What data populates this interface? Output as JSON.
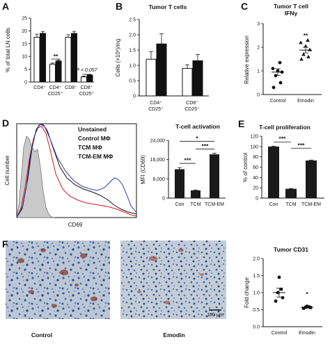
{
  "panels": {
    "A": {
      "label": "A"
    },
    "B": {
      "label": "B"
    },
    "C": {
      "label": "C"
    },
    "D": {
      "label": "D"
    },
    "E": {
      "label": "E"
    },
    "F": {
      "label": "F"
    }
  },
  "chart_data": [
    {
      "id": "A",
      "type": "bar",
      "ylabel": "% of total LN cells",
      "ylim": [
        0,
        25
      ],
      "yticks": [
        0,
        5,
        10,
        15,
        20,
        25
      ],
      "categories": [
        "CD4⁺",
        "CD4⁺ CD25⁺",
        "CD8⁺",
        "CD8⁺ CD25⁺"
      ],
      "cat_lines": [
        [
          "CD4⁺"
        ],
        [
          "CD4⁺",
          "CD25⁺"
        ],
        [
          "CD8⁺"
        ],
        [
          "CD8⁺",
          "CD25⁺"
        ]
      ],
      "series": [
        {
          "values": [
            17.5,
            7.0,
            17.5,
            2.0
          ],
          "errors": [
            1.2,
            0.4,
            1.0,
            0.3
          ],
          "color": "#ffffff"
        },
        {
          "values": [
            19.0,
            8.2,
            19.0,
            2.7
          ],
          "errors": [
            0.7,
            0.4,
            0.8,
            0.2
          ],
          "color": "#111111"
        }
      ],
      "annotations": [
        {
          "text": "**",
          "group": 1
        },
        {
          "text": "P = 0.057",
          "group": 3
        }
      ]
    },
    {
      "id": "B",
      "type": "bar",
      "title": "Tumor T cells",
      "ylabel": "Cells (×10³)/mg",
      "ylim": [
        0,
        2.5
      ],
      "yticks": [
        0,
        0.5,
        1.0,
        1.5,
        2.0,
        2.5
      ],
      "categories": [
        "CD4⁺ CD25⁺",
        "CD8⁺ CD25⁺"
      ],
      "cat_lines": [
        [
          "CD4⁺",
          "CD25⁺"
        ],
        [
          "CD8⁺",
          "CD25⁺"
        ]
      ],
      "series": [
        {
          "values": [
            1.2,
            0.9
          ],
          "errors": [
            0.25,
            0.12
          ],
          "color": "#ffffff"
        },
        {
          "values": [
            1.7,
            1.15
          ],
          "errors": [
            0.33,
            0.2
          ],
          "color": "#111111"
        }
      ]
    },
    {
      "id": "C",
      "type": "scatter",
      "title": [
        "Tumor T cell",
        "IFNγ"
      ],
      "ylabel": "Relative expression",
      "ylim": [
        0,
        3
      ],
      "yticks": [
        0,
        1,
        2,
        3
      ],
      "categories": [
        "Control",
        "Emodin"
      ],
      "groups": [
        {
          "name": "Control",
          "values": [
            0.3,
            0.5,
            0.8,
            0.95,
            1.0,
            1.1,
            1.35
          ],
          "mean": 0.95,
          "sem": 0.14,
          "marker": "circle"
        },
        {
          "name": "Emodin",
          "values": [
            1.5,
            1.6,
            1.7,
            1.9,
            2.05,
            2.2,
            2.3
          ],
          "mean": 1.88,
          "sem": 0.12,
          "marker": "triangle"
        }
      ],
      "annotations": [
        {
          "text": "**",
          "group": 1
        }
      ]
    },
    {
      "id": "D1",
      "type": "line",
      "xlabel": "CD69",
      "ylabel": "Cell number",
      "legend": [
        {
          "name": "Unstained",
          "color": "#9a9a9a"
        },
        {
          "name": "Control MΦ",
          "color": "#111111"
        },
        {
          "name": "TCM MΦ",
          "color": "#d01818"
        },
        {
          "name": "TCM-EM MΦ",
          "color": "#2a3fa0"
        }
      ]
    },
    {
      "id": "D2",
      "type": "bar",
      "title": "T-cell activation",
      "ylabel": "MFI (CD69)",
      "ylim": [
        0,
        24000
      ],
      "yticks": [
        0,
        8000,
        16000,
        24000
      ],
      "ytick_labels": [
        "0",
        "8,000",
        "16,000",
        "24,000"
      ],
      "categories": [
        "Con",
        "TCM",
        "TCM-EM"
      ],
      "values": [
        12000,
        3200,
        18200
      ],
      "errors": [
        700,
        200,
        500
      ],
      "sig": [
        {
          "from": 0,
          "to": 1,
          "text": "***",
          "level": 1
        },
        {
          "from": 1,
          "to": 2,
          "text": "***",
          "level": 1
        },
        {
          "from": 0,
          "to": 2,
          "text": "*",
          "level": 2
        }
      ]
    },
    {
      "id": "E",
      "type": "bar",
      "title": "T-cell proliferation",
      "ylabel": "% of control",
      "ylim": [
        0,
        120
      ],
      "yticks": [
        0,
        20,
        40,
        60,
        80,
        100,
        120
      ],
      "categories": [
        "Con",
        "TCM",
        "TCM-EM"
      ],
      "values": [
        100,
        18,
        73
      ],
      "errors": [
        0.8,
        0.6,
        0.8
      ],
      "sig": [
        {
          "from": 0,
          "to": 1,
          "text": "***",
          "level": 1
        },
        {
          "from": 1,
          "to": 2,
          "text": "***",
          "level": 2
        }
      ]
    },
    {
      "id": "F2",
      "type": "scatter",
      "title": "Tumor CD31",
      "ylabel": "Fold change",
      "ylim": [
        0,
        2.0
      ],
      "yticks": [
        0,
        0.5,
        1.0,
        1.5,
        2.0
      ],
      "categories": [
        "Control",
        "Emodin"
      ],
      "groups": [
        {
          "name": "Control",
          "values": [
            0.75,
            0.85,
            1.0,
            1.1,
            1.45
          ],
          "mean": 1.0,
          "sem": 0.13,
          "marker": "circle"
        },
        {
          "name": "Emodin",
          "values": [
            0.54,
            0.56,
            0.57,
            0.58,
            0.6
          ],
          "mean": 0.57,
          "sem": 0.01,
          "marker": "square"
        }
      ],
      "annotations": [
        {
          "text": "*",
          "group": 1
        }
      ]
    }
  ],
  "images": {
    "control": {
      "caption": "Control"
    },
    "emodin": {
      "caption": "Emodin",
      "scalebar": "100 μm"
    }
  }
}
